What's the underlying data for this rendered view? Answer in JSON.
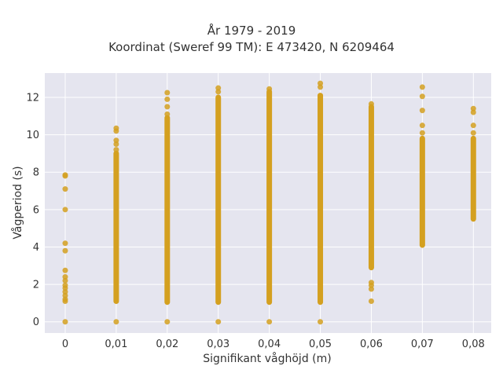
{
  "chart_data": {
    "type": "scatter",
    "title": [
      "År 1979 - 2019",
      "Koordinat (Sweref 99 TM): E 473420, N 6209464"
    ],
    "xlabel": "Signifikant våghöjd (m)",
    "ylabel": "Vågperiod (s)",
    "x_tick_labels": [
      "0",
      "0,01",
      "0,02",
      "0,03",
      "0,04",
      "0,05",
      "0,06",
      "0,07",
      "0,08"
    ],
    "y_tick_labels": [
      "0",
      "2",
      "4",
      "6",
      "8",
      "10",
      "12"
    ],
    "xlim": [
      -0.004,
      0.0835
    ],
    "ylim": [
      -0.6,
      13.3
    ],
    "grid": true,
    "colors": {
      "marker": "#d4a020",
      "plot_background": "#e5e5ef",
      "grid": "#ffffff"
    },
    "series": [
      {
        "points": [
          {
            "x": 0,
            "y": 7.85
          },
          {
            "x": 0,
            "y": 7.8
          },
          {
            "x": 0,
            "y": 7.1
          },
          {
            "x": 0,
            "y": 6.0
          },
          {
            "x": 0,
            "y": 4.2
          },
          {
            "x": 0,
            "y": 3.8
          },
          {
            "x": 0,
            "y": 2.75
          },
          {
            "x": 0,
            "y": 2.4
          },
          {
            "x": 0,
            "y": 2.2
          },
          {
            "x": 0,
            "y": 1.95
          },
          {
            "x": 0,
            "y": 1.8
          },
          {
            "x": 0,
            "y": 1.6
          },
          {
            "x": 0,
            "y": 1.4
          },
          {
            "x": 0,
            "y": 1.2
          },
          {
            "x": 0,
            "y": 1.1
          },
          {
            "x": 0,
            "y": 0.0
          },
          {
            "x": 0.01,
            "y": 0.0
          },
          {
            "x": 0.01,
            "y": 10.35
          },
          {
            "x": 0.01,
            "y": 10.2
          },
          {
            "x": 0.01,
            "y": 9.7
          },
          {
            "x": 0.01,
            "y": 9.5
          },
          {
            "x": 0.01,
            "y": 9.2
          },
          {
            "x": 0.02,
            "y": 0.0
          },
          {
            "x": 0.02,
            "y": 12.25
          },
          {
            "x": 0.02,
            "y": 11.9
          },
          {
            "x": 0.02,
            "y": 11.5
          },
          {
            "x": 0.02,
            "y": 11.1
          },
          {
            "x": 0.03,
            "y": 0.0
          },
          {
            "x": 0.03,
            "y": 12.5
          },
          {
            "x": 0.03,
            "y": 12.3
          },
          {
            "x": 0.04,
            "y": 0.0
          },
          {
            "x": 0.04,
            "y": 12.45
          },
          {
            "x": 0.05,
            "y": 0.0
          },
          {
            "x": 0.05,
            "y": 12.75
          },
          {
            "x": 0.05,
            "y": 12.55
          },
          {
            "x": 0.06,
            "y": 2.1
          },
          {
            "x": 0.06,
            "y": 1.95
          },
          {
            "x": 0.06,
            "y": 1.75
          },
          {
            "x": 0.06,
            "y": 1.1
          },
          {
            "x": 0.06,
            "y": 11.65
          },
          {
            "x": 0.07,
            "y": 12.55
          },
          {
            "x": 0.07,
            "y": 12.05
          },
          {
            "x": 0.07,
            "y": 11.3
          },
          {
            "x": 0.07,
            "y": 10.5
          },
          {
            "x": 0.07,
            "y": 10.1
          },
          {
            "x": 0.08,
            "y": 11.4
          },
          {
            "x": 0.08,
            "y": 11.2
          },
          {
            "x": 0.08,
            "y": 10.5
          },
          {
            "x": 0.08,
            "y": 10.1
          }
        ],
        "dense_ranges": [
          {
            "x": 0.01,
            "y_min": 1.1,
            "y_max": 9.0
          },
          {
            "x": 0.02,
            "y_min": 1.05,
            "y_max": 10.9
          },
          {
            "x": 0.03,
            "y_min": 1.05,
            "y_max": 12.0
          },
          {
            "x": 0.04,
            "y_min": 1.05,
            "y_max": 12.3
          },
          {
            "x": 0.05,
            "y_min": 1.05,
            "y_max": 12.1
          },
          {
            "x": 0.06,
            "y_min": 2.9,
            "y_max": 11.5
          },
          {
            "x": 0.07,
            "y_min": 4.1,
            "y_max": 9.8
          },
          {
            "x": 0.08,
            "y_min": 5.5,
            "y_max": 9.8
          }
        ]
      }
    ]
  }
}
